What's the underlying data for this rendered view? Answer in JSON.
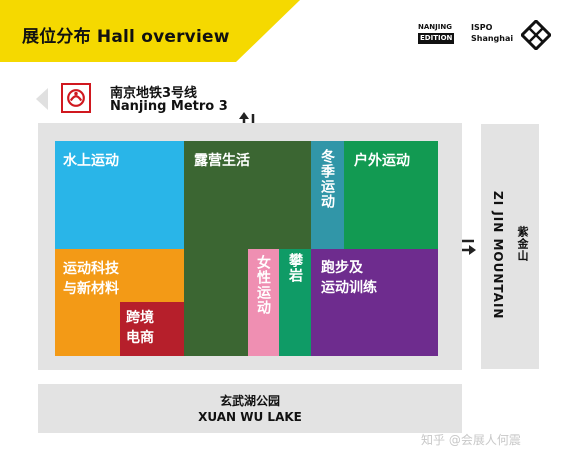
{
  "header": {
    "title": "展位分布 Hall overview",
    "edition_line1": "NANJING",
    "edition_line2": "EDITION",
    "ispo_line1": "ISPO",
    "ispo_line2": "Shanghai",
    "band_color": "#f5d900"
  },
  "metro": {
    "name_cn": "南京地铁3号线",
    "name_en": "Nanjing Metro 3",
    "logo_color": "#d0181f",
    "logo_icon": "nanjing-metro-logo-icon"
  },
  "map": {
    "zones": [
      {
        "id": "water-sports",
        "label": "水上运动",
        "color": "#29b5e8"
      },
      {
        "id": "camping",
        "label": "露营生活",
        "color": "#3b6632"
      },
      {
        "id": "winter-sports",
        "label": "冬季运动",
        "color": "#3196a8",
        "vertical": true
      },
      {
        "id": "outdoor-sports",
        "label": "户外运动",
        "color": "#129a52"
      },
      {
        "id": "sports-tech",
        "label_lines": [
          "运动科技",
          "与新材料"
        ],
        "color": "#f39a16"
      },
      {
        "id": "crossover-ecommerce",
        "label_lines": [
          "跨境",
          "电商"
        ],
        "color": "#b61f2b"
      },
      {
        "id": "womens-sports",
        "label": "女性运动",
        "color": "#ef8fb2",
        "vertical": true
      },
      {
        "id": "climbing",
        "label": "攀岩",
        "color": "#0f9b66",
        "vertical": true
      },
      {
        "id": "running-training",
        "label_lines": [
          "跑步及",
          "运动训练"
        ],
        "color": "#6e2c8e"
      }
    ],
    "surroundings": {
      "mountain_cn": "紫金山",
      "mountain_en": "ZI JIN MOUNTAIN",
      "lake_cn": "玄武湖公园",
      "lake_en": "XUAN WU LAKE"
    }
  },
  "watermark": "知乎 @会展人何震"
}
